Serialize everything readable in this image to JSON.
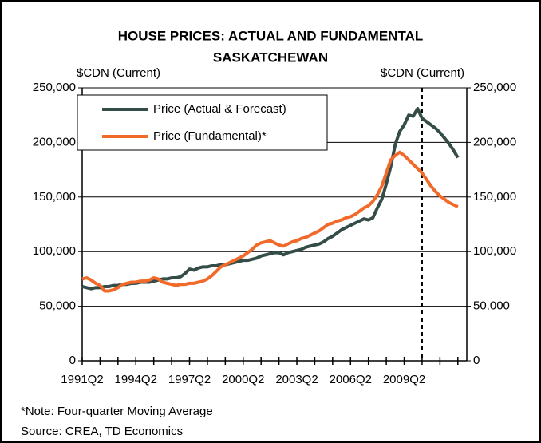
{
  "chart_data": {
    "type": "line",
    "title": [
      "HOUSE PRICES: ACTUAL AND FUNDAMENTAL",
      "SASKATCHEWAN"
    ],
    "y_label": "$CDN (Current)",
    "y2_label": "$CDN (Current)",
    "notes": [
      "*Note: Four-quarter Moving Average",
      "Source: CREA, TD Economics"
    ],
    "categories": [
      "1991Q2",
      null,
      null,
      null,
      null,
      null,
      null,
      null,
      null,
      null,
      null,
      null,
      "1994Q2",
      null,
      null,
      null,
      null,
      null,
      null,
      null,
      null,
      null,
      null,
      null,
      "1997Q2",
      null,
      null,
      null,
      null,
      null,
      null,
      null,
      null,
      null,
      null,
      null,
      "2000Q2",
      null,
      null,
      null,
      null,
      null,
      null,
      null,
      null,
      null,
      null,
      null,
      "2003Q2",
      null,
      null,
      null,
      null,
      null,
      null,
      null,
      null,
      null,
      null,
      null,
      "2006Q2",
      null,
      null,
      null,
      null,
      null,
      null,
      null,
      null,
      null,
      null,
      null,
      "2009Q2",
      null,
      null,
      null,
      null,
      null,
      null,
      null,
      null,
      null,
      null,
      null,
      null
    ],
    "series": [
      {
        "name": "Price (Actual & Forecast)",
        "color": "#354d48",
        "values": [
          68000,
          67000,
          66000,
          67000,
          67000,
          68000,
          68000,
          69000,
          69000,
          70000,
          70000,
          71000,
          71000,
          72000,
          72000,
          72000,
          73000,
          74000,
          75000,
          75000,
          76000,
          76000,
          77000,
          80000,
          84000,
          83000,
          85000,
          86000,
          86000,
          87000,
          87000,
          88000,
          88000,
          89000,
          90000,
          91000,
          92000,
          92000,
          93000,
          94000,
          96000,
          97000,
          98000,
          99000,
          99000,
          97000,
          99000,
          100000,
          101000,
          102000,
          104000,
          105000,
          106000,
          107000,
          109000,
          112000,
          114000,
          117000,
          120000,
          122000,
          124000,
          126000,
          128000,
          130000,
          129000,
          131000,
          140000,
          148000,
          162000,
          178000,
          198000,
          210000,
          216000,
          225000,
          224000,
          231000,
          222000,
          219000,
          216000,
          213000,
          209000,
          204000,
          199000,
          193000,
          186000
        ]
      },
      {
        "name": "Price (Fundamental)*",
        "color": "#f26a2a",
        "values": [
          75000,
          76000,
          74000,
          71000,
          69000,
          64000,
          64000,
          65000,
          67000,
          70000,
          71000,
          72000,
          72000,
          73000,
          73000,
          74000,
          76000,
          75000,
          72000,
          71000,
          70000,
          69000,
          70000,
          70000,
          71000,
          71000,
          72000,
          73000,
          75000,
          78000,
          82000,
          86000,
          88000,
          90000,
          92000,
          94000,
          96000,
          99000,
          102000,
          106000,
          108000,
          109000,
          110000,
          108000,
          106000,
          105000,
          107000,
          109000,
          110000,
          112000,
          113000,
          115000,
          117000,
          119000,
          122000,
          125000,
          126000,
          128000,
          129000,
          131000,
          132000,
          134000,
          137000,
          140000,
          142000,
          146000,
          152000,
          160000,
          172000,
          184000,
          188000,
          191000,
          188000,
          184000,
          180000,
          176000,
          172000,
          166000,
          160000,
          155000,
          151000,
          148000,
          145000,
          143000,
          141000
        ]
      }
    ],
    "forecast_line": 76,
    "ylim": [
      0,
      250000
    ],
    "yticks": [
      0,
      {
        "value": 50000,
        "label": "50,000"
      },
      {
        "value": 100000,
        "label": "100,000"
      },
      {
        "value": 150000,
        "label": "150,000"
      },
      {
        "value": 200000,
        "label": "200,000"
      },
      {
        "value": 250000,
        "label": "250,000"
      }
    ],
    "y2lim": [
      0,
      250000
    ],
    "y2ticks": [
      0,
      {
        "value": 50000,
        "label": "50,000"
      },
      {
        "value": 100000,
        "label": "100,000"
      },
      {
        "value": 150000,
        "label": "150,000"
      },
      {
        "value": 200000,
        "label": "200,000"
      },
      {
        "value": 250000,
        "label": "250,000"
      }
    ],
    "grid": true,
    "legend": "top-left"
  }
}
